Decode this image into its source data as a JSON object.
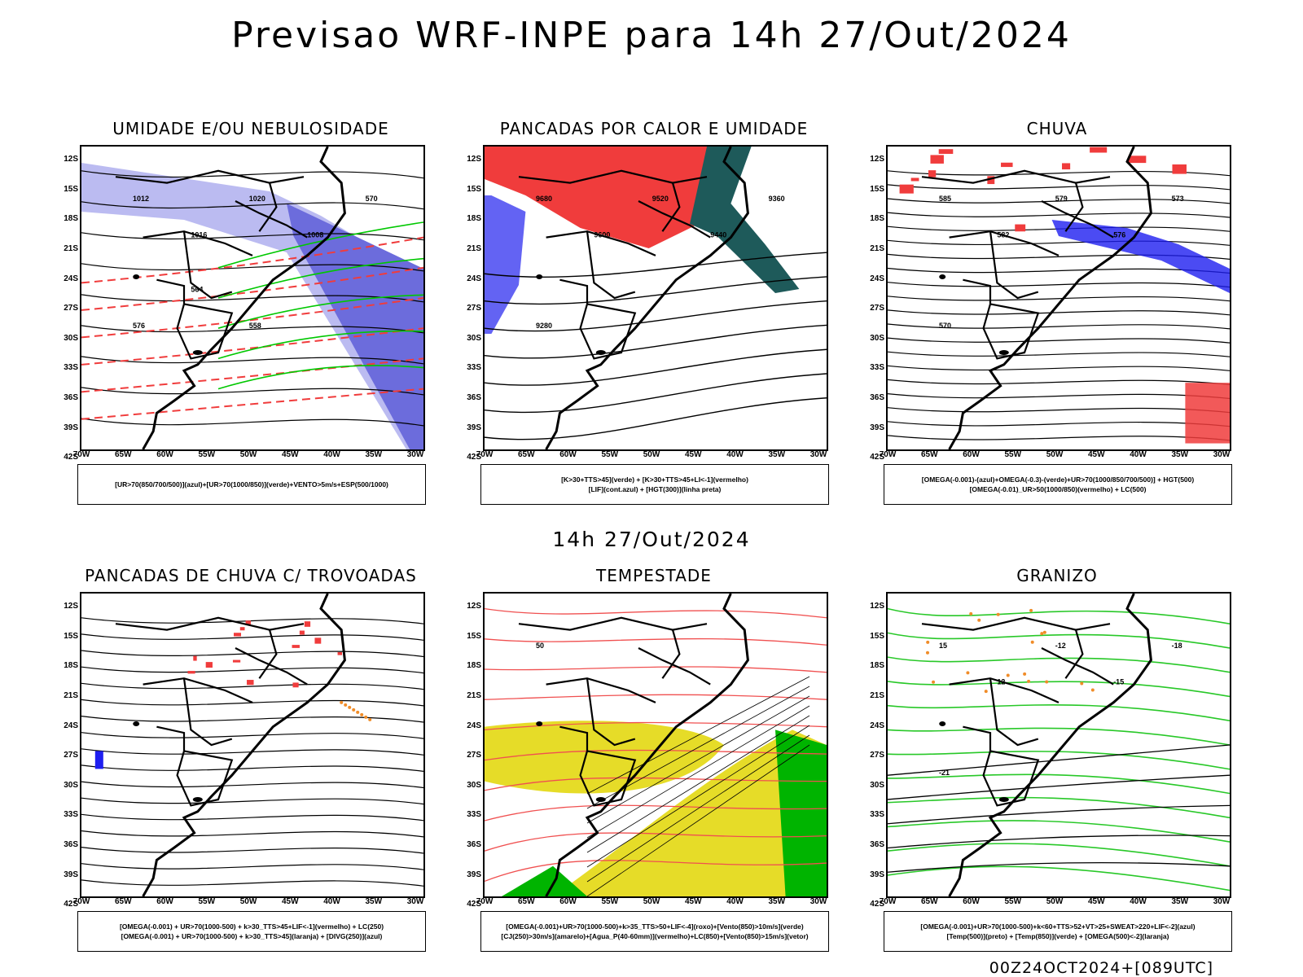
{
  "title": "Previsao WRF-INPE  para 14h 27/Out/2024",
  "mid_title": "14h 27/Out/2024",
  "footer": "00Z24OCT2024+[089UTC]",
  "lat_labels": [
    "12S",
    "15S",
    "18S",
    "21S",
    "24S",
    "27S",
    "30S",
    "33S",
    "36S",
    "39S",
    "42S"
  ],
  "lon_labels": [
    "70W",
    "65W",
    "60W",
    "55W",
    "50W",
    "45W",
    "40W",
    "35W",
    "30W"
  ],
  "panels": [
    {
      "title": "UMIDADE E/OU NEBULOSIDADE",
      "legend": [
        "[UR>70(850/700/500)](azul)+[UR>70(1000/850)](verde)+VENTO>5m/s+ESP(500/1000)"
      ],
      "contour_labels": [
        "1012",
        "1016",
        "1020",
        "1008",
        "570",
        "576",
        "564",
        "558"
      ],
      "colors": {
        "fill": "#b4b4f0",
        "fill2": "#6c6cdc",
        "line": "#00c800",
        "dash": "#f03c3c"
      }
    },
    {
      "title": "PANCADAS POR CALOR E UMIDADE",
      "legend": [
        "[K>30+TTS>45](verde) + [K>30+TTS>45+LI<-1](vermelho)",
        "[LIF](cont.azul) + [HGT(300)](linha preta)"
      ],
      "contour_labels": [
        "9680",
        "9600",
        "9520",
        "9440",
        "9360",
        "9280"
      ],
      "colors": {
        "fill": "#f03c3c",
        "fill2": "#1e5a5a",
        "line": "#3c3cf0"
      }
    },
    {
      "title": "CHUVA",
      "legend": [
        "[OMEGA(-0.001)-(azul)+OMEGA(-0.3)-(verde)+UR>70(1000/850/700/500)] + HGT(500)",
        "[OMEGA(-0.01)_UR>50(1000/850)(vermelho) + LC(500)"
      ],
      "contour_labels": [
        "585",
        "582",
        "579",
        "576",
        "573",
        "570"
      ],
      "colors": {
        "fill": "#f03c3c",
        "fill2": "#1e1ef0",
        "line": "#00c800"
      }
    },
    {
      "title": "PANCADAS DE CHUVA C/ TROVOADAS",
      "legend": [
        "[OMEGA(-0.001) + UR>70(1000-500) + k>30_TTS>45+LIF<-1](vermelho) + LC(250)",
        "[OMEGA(-0.001) + UR>70(1000-500) + k>30_TTS>45](laranja) + [DIVG(250)](azul)"
      ],
      "contour_labels": [],
      "colors": {
        "fill": "#f03c3c",
        "fill2": "#1e1ef0",
        "line": "#f08c28"
      }
    },
    {
      "title": "TEMPESTADE",
      "legend": [
        "[OMEGA(-0.001)+UR>70(1000-500)+k>35_TTS>50+LIF<-4](roxo)+[Vento(850)>10m/s](verde)",
        "[CJ(250)>30m/s](amarelo)+[Agua_P(40-60mm)](vermelho)+LC(850)+[Vento(850)>15m/s](vetor)"
      ],
      "contour_labels": [
        "50"
      ],
      "colors": {
        "fill": "#e6dc28",
        "fill2": "#00b400",
        "line": "#f05050"
      }
    },
    {
      "title": "GRANIZO",
      "legend": [
        "[OMEGA(-0.001)+UR>70(1000-500)+k<60+TTS>52+VT>25+SWEAT>220+LIF<-2](azul)",
        "[Temp(500)](preto) + [Temp(850)](verde) + [OMEGA(500)<-2](laranja)"
      ],
      "contour_labels": [
        "15",
        "12",
        "-12",
        "-15",
        "-18",
        "-21"
      ],
      "colors": {
        "fill": "#f08c28",
        "fill2": "#00c800",
        "line": "#28c828"
      }
    }
  ]
}
